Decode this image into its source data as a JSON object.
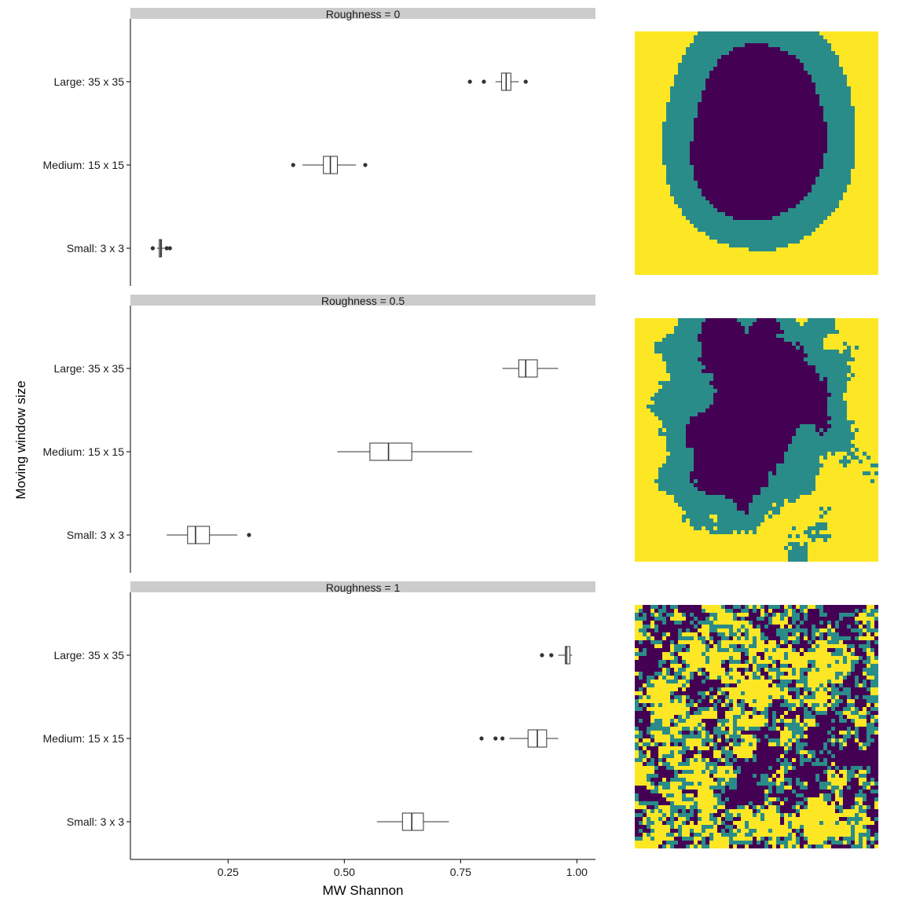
{
  "chart_data": {
    "type": "boxplot",
    "orientation": "horizontal",
    "xlabel": "MW Shannon",
    "ylabel": "Moving window size",
    "xlim": [
      0.04,
      1.04
    ],
    "x_ticks": [
      0.25,
      0.5,
      0.75,
      1.0
    ],
    "x_tick_labels": [
      "0.25",
      "0.50",
      "0.75",
      "1.00"
    ],
    "categories": [
      "Large: 35 x 35",
      "Medium: 15 x 15",
      "Small: 3 x 3"
    ],
    "grid": false,
    "legend": "none",
    "colors": {
      "strip": "#cccccc",
      "box_line": "#333333",
      "axis": "#000000",
      "land_low": "#440154",
      "land_mid": "#2a8c88",
      "land_high": "#fde725"
    },
    "facets": [
      {
        "strip_label": "Roughness = 0",
        "boxes": [
          {
            "category": "Large: 35 x 35",
            "whisker_low": 0.825,
            "q1": 0.838,
            "median": 0.848,
            "q3": 0.858,
            "whisker_high": 0.875,
            "outliers": [
              0.77,
              0.8,
              0.89
            ]
          },
          {
            "category": "Medium: 15 x 15",
            "whisker_low": 0.41,
            "q1": 0.455,
            "median": 0.47,
            "q3": 0.485,
            "whisker_high": 0.525,
            "outliers": [
              0.39,
              0.545
            ]
          },
          {
            "category": "Small: 3 x 3",
            "whisker_low": 0.097,
            "q1": 0.102,
            "median": 0.105,
            "q3": 0.107,
            "whisker_high": 0.113,
            "outliers": [
              0.088,
              0.118,
              0.125
            ]
          }
        ],
        "landscape": {
          "type": "smooth",
          "seed": 11
        }
      },
      {
        "strip_label": "Roughness = 0.5",
        "boxes": [
          {
            "category": "Large: 35 x 35",
            "whisker_low": 0.84,
            "q1": 0.875,
            "median": 0.89,
            "q3": 0.915,
            "whisker_high": 0.96,
            "outliers": []
          },
          {
            "category": "Medium: 15 x 15",
            "whisker_low": 0.485,
            "q1": 0.555,
            "median": 0.595,
            "q3": 0.645,
            "whisker_high": 0.775,
            "outliers": []
          },
          {
            "category": "Small: 3 x 3",
            "whisker_low": 0.118,
            "q1": 0.163,
            "median": 0.18,
            "q3": 0.21,
            "whisker_high": 0.27,
            "outliers": [
              0.295
            ]
          }
        ],
        "landscape": {
          "type": "medium",
          "seed": 23
        }
      },
      {
        "strip_label": "Roughness = 1",
        "boxes": [
          {
            "category": "Large: 35 x 35",
            "whisker_low": 0.96,
            "q1": 0.975,
            "median": 0.978,
            "q3": 0.985,
            "whisker_high": 0.99,
            "outliers": [
              0.925,
              0.945
            ]
          },
          {
            "category": "Medium: 15 x 15",
            "whisker_low": 0.855,
            "q1": 0.895,
            "median": 0.915,
            "q3": 0.935,
            "whisker_high": 0.96,
            "outliers": [
              0.795,
              0.825,
              0.84
            ]
          },
          {
            "category": "Small: 3 x 3",
            "whisker_low": 0.57,
            "q1": 0.625,
            "median": 0.645,
            "q3": 0.67,
            "whisker_high": 0.725,
            "outliers": []
          }
        ],
        "landscape": {
          "type": "rough",
          "seed": 37
        }
      }
    ]
  }
}
